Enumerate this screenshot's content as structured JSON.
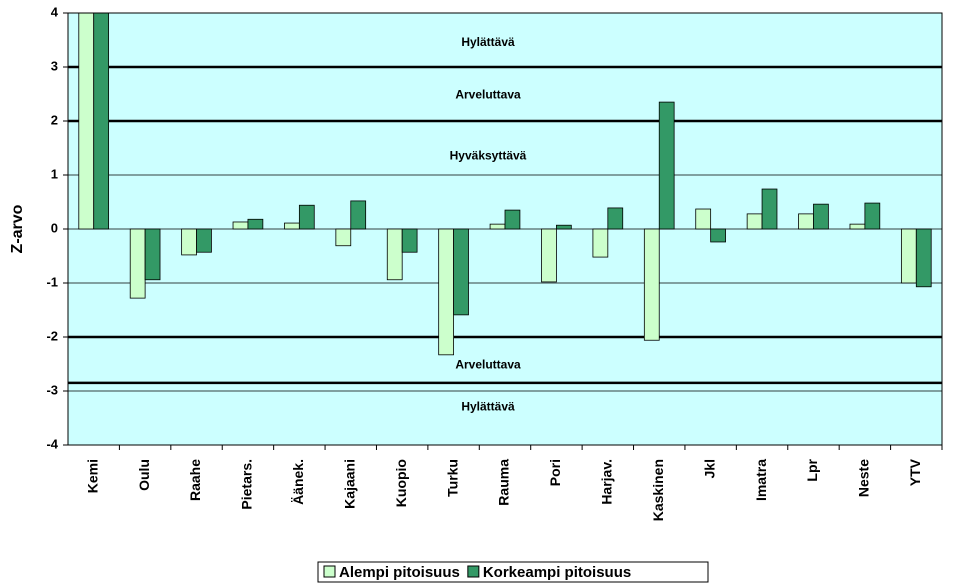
{
  "chart_data": {
    "type": "bar",
    "y_label": "Z-arvo",
    "categories": [
      "Kemi",
      "Oulu",
      "Raahe",
      "Pietars.",
      "Äänek.",
      "Kajaani",
      "Kuopio",
      "Turku",
      "Rauma",
      "Pori",
      "Harjav.",
      "Kaskinen",
      "Jkl",
      "Imatra",
      "Lpr",
      "Neste",
      "YTV"
    ],
    "series": [
      {
        "name": "Alempi pitoisuus",
        "color": "#ccffcc",
        "values": [
          4,
          -1.28,
          -0.48,
          0.13,
          0.11,
          -0.31,
          -0.94,
          -2.33,
          0.09,
          -0.98,
          -0.52,
          -2.06,
          0.37,
          0.28,
          0.28,
          0.09,
          -1.0
        ]
      },
      {
        "name": "Korkeampi pitoisuus",
        "color": "#339966",
        "values": [
          4,
          -0.94,
          -0.43,
          0.18,
          0.44,
          0.52,
          -0.43,
          -1.59,
          0.35,
          0.07,
          0.39,
          2.35,
          -0.24,
          0.74,
          0.46,
          0.48,
          -1.07
        ]
      }
    ],
    "ylim": [
      -4,
      4
    ],
    "yticks": [
      -4,
      -3,
      -2,
      -1,
      0,
      1,
      2,
      3,
      4
    ],
    "grid": true,
    "reference_lines": [
      3,
      2,
      -2,
      -2.85
    ],
    "annotations": [
      {
        "text": "Hylättävä",
        "y": 3.45
      },
      {
        "text": "Arveluttava",
        "y": 2.48
      },
      {
        "text": "Hyväksyttävä",
        "y": 1.35
      },
      {
        "text": "Arveluttava",
        "y": -2.52
      },
      {
        "text": "Hylättävä",
        "y": -3.3
      }
    ],
    "background": "#ccffff",
    "legend": "bottom"
  }
}
